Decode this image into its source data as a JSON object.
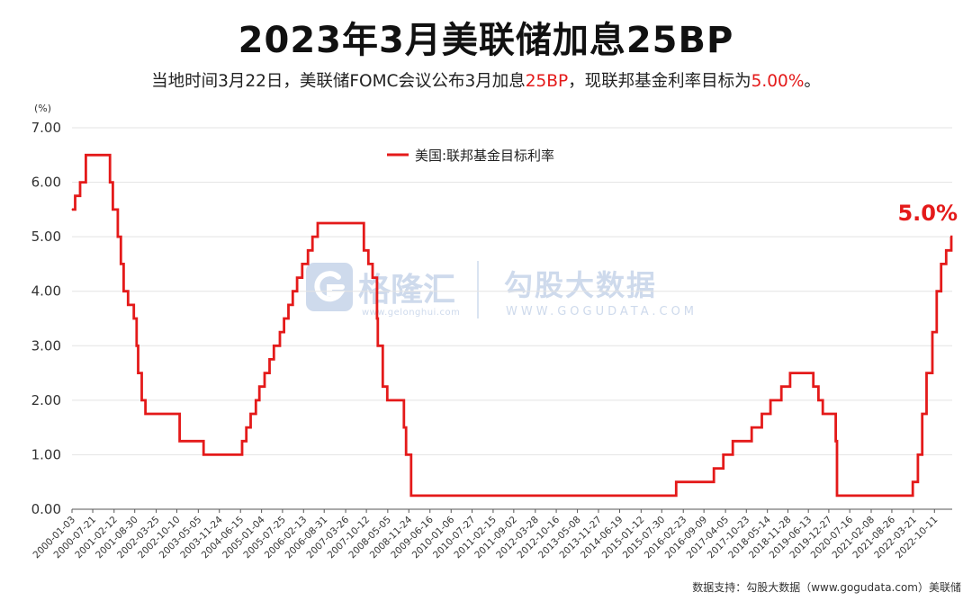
{
  "header": {
    "title": "2023年3月美联储加息25BP",
    "subtitle_a": "当地时间3月22日，美联储FOMC会议公布3月加息",
    "subtitle_b": "25BP",
    "subtitle_c": "，现联邦基金利率目标为",
    "subtitle_d": "5.00%",
    "subtitle_e": "。"
  },
  "watermark": {
    "brand": "格隆汇",
    "brand_url": "www.gelonghui.com",
    "partner": "勾股大数据",
    "partner_url": "WWW.GOGUDATA.COM"
  },
  "footer": {
    "source": "数据支持：勾股大数据（www.gogudata.com）美联储"
  },
  "colors": {
    "line": "#e41a1a",
    "grid": "#e3e3e3",
    "axis": "#555555",
    "watermark": "#c9d6ea"
  },
  "chart_data": {
    "type": "line",
    "step": true,
    "ylabel": "(%)",
    "ylim": [
      0,
      7
    ],
    "y_ticks": [
      "0.00",
      "1.00",
      "2.00",
      "3.00",
      "4.00",
      "5.00",
      "6.00",
      "7.00"
    ],
    "x_ticks": [
      "2000-01-03",
      "2000-07-21",
      "2001-02-12",
      "2001-08-30",
      "2002-03-25",
      "2002-10-10",
      "2003-05-05",
      "2003-11-24",
      "2004-06-15",
      "2005-01-04",
      "2005-07-25",
      "2006-02-13",
      "2006-08-31",
      "2007-03-26",
      "2007-10-12",
      "2008-05-05",
      "2008-11-24",
      "2009-06-16",
      "2010-01-06",
      "2010-07-27",
      "2011-02-15",
      "2011-09-02",
      "2012-03-28",
      "2012-10-16",
      "2013-05-08",
      "2013-11-27",
      "2014-06-19",
      "2015-01-12",
      "2015-07-30",
      "2016-02-23",
      "2016-09-09",
      "2017-04-05",
      "2017-10-23",
      "2018-05-14",
      "2018-11-28",
      "2019-06-13",
      "2019-12-27",
      "2020-07-16",
      "2021-02-08",
      "2021-08-26",
      "2022-03-21",
      "2022-10-11"
    ],
    "legend": {
      "position": "top-center"
    },
    "grid": "horizontal",
    "annotation": "5.0%",
    "series": [
      {
        "name": "美国:联邦基金目标利率",
        "x": [
          "2000-01-03",
          "2000-02-02",
          "2000-03-21",
          "2000-05-16",
          "2001-01-03",
          "2001-01-31",
          "2001-03-20",
          "2001-04-18",
          "2001-05-15",
          "2001-06-27",
          "2001-08-21",
          "2001-09-17",
          "2001-10-02",
          "2001-11-06",
          "2001-12-11",
          "2002-11-06",
          "2003-06-25",
          "2004-06-30",
          "2004-08-10",
          "2004-09-21",
          "2004-11-10",
          "2004-12-14",
          "2005-02-02",
          "2005-03-22",
          "2005-05-03",
          "2005-06-30",
          "2005-08-09",
          "2005-09-20",
          "2005-11-01",
          "2005-12-13",
          "2006-01-31",
          "2006-03-28",
          "2006-05-10",
          "2006-06-29",
          "2007-09-18",
          "2007-10-31",
          "2007-12-11",
          "2008-01-22",
          "2008-01-30",
          "2008-03-18",
          "2008-04-30",
          "2008-10-08",
          "2008-10-29",
          "2008-12-16",
          "2015-12-16",
          "2016-12-14",
          "2017-03-15",
          "2017-06-14",
          "2017-12-13",
          "2018-03-21",
          "2018-06-13",
          "2018-09-26",
          "2018-12-19",
          "2019-07-31",
          "2019-09-18",
          "2019-10-30",
          "2020-03-03",
          "2020-03-15",
          "2022-03-16",
          "2022-05-04",
          "2022-06-15",
          "2022-07-27",
          "2022-09-21",
          "2022-11-02",
          "2022-12-14",
          "2023-02-01",
          "2023-03-22"
        ],
        "values": [
          5.5,
          5.75,
          6.0,
          6.5,
          6.0,
          5.5,
          5.0,
          4.5,
          4.0,
          3.75,
          3.5,
          3.0,
          2.5,
          2.0,
          1.75,
          1.25,
          1.0,
          1.25,
          1.5,
          1.75,
          2.0,
          2.25,
          2.5,
          2.75,
          3.0,
          3.25,
          3.5,
          3.75,
          4.0,
          4.25,
          4.5,
          4.75,
          5.0,
          5.25,
          4.75,
          4.5,
          4.25,
          3.5,
          3.0,
          2.25,
          2.0,
          1.5,
          1.0,
          0.25,
          0.5,
          0.75,
          1.0,
          1.25,
          1.5,
          1.75,
          2.0,
          2.25,
          2.5,
          2.25,
          2.0,
          1.75,
          1.25,
          0.25,
          0.5,
          1.0,
          1.75,
          2.5,
          3.25,
          4.0,
          4.5,
          4.75,
          5.0
        ]
      }
    ]
  }
}
